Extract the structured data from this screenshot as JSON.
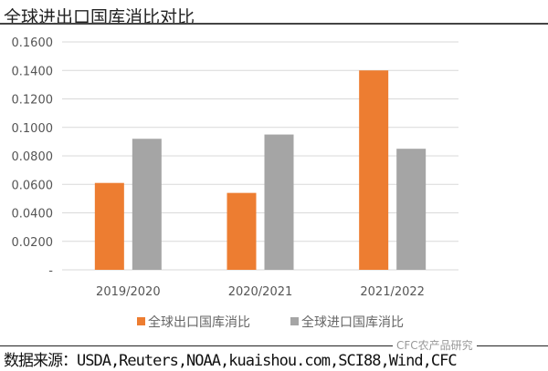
{
  "title": "全球进出口国库消比对比",
  "source": "数据来源：USDA,Reuters,NOAA,kuaishou.com,SCI88,Wind,CFC",
  "watermark": "CFC农产品研究",
  "chart_data": {
    "type": "bar",
    "categories": [
      "2019/2020",
      "2020/2021",
      "2021/2022"
    ],
    "series": [
      {
        "name": "全球出口国库消比",
        "color": "#ED7D31",
        "values": [
          0.061,
          0.054,
          0.14
        ]
      },
      {
        "name": "全球进口国库消比",
        "color": "#A5A5A5",
        "values": [
          0.092,
          0.095,
          0.085
        ]
      }
    ],
    "ylim": [
      0,
      0.16
    ],
    "yticks": [
      "-",
      "0.0200",
      "0.0400",
      "0.0600",
      "0.0800",
      "0.1000",
      "0.1200",
      "0.1400",
      "0.1600"
    ],
    "grid": true,
    "legend": "bottom"
  }
}
